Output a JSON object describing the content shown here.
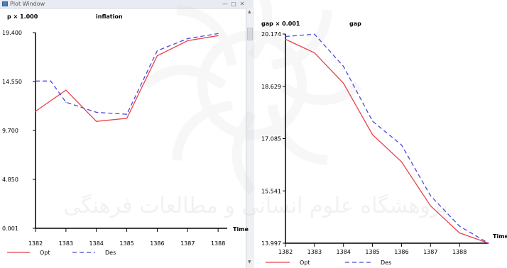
{
  "window": {
    "title": "Plot Window",
    "minimize_glyph": "—",
    "maximize_glyph": "▢",
    "close_glyph": "✕",
    "scroll_up_glyph": "▲",
    "scroll_down_glyph": "▼"
  },
  "watermark": {
    "text": "پژوهشگاه علوم انسانی و مطالعات فرهنگی",
    "color": "#cfcfcf"
  },
  "colors": {
    "opt": "#e8414b",
    "des": "#4a4ad8",
    "axis": "#000000"
  },
  "chart_data": [
    {
      "type": "line",
      "title": "inflation",
      "scale_label": "p × 1.000",
      "time_label": "Time",
      "y_tick_labels": [
        "19.400",
        "14.550",
        "9.700",
        "4.850",
        "0.001"
      ],
      "ylim": [
        0.001,
        19.4
      ],
      "x": [
        1382,
        1383,
        1384,
        1385,
        1386,
        1387,
        1388
      ],
      "x_tick_labels": [
        "1382",
        "1383",
        "1384",
        "1385",
        "1386",
        "1387",
        "1388"
      ],
      "xlim": [
        1382,
        1388.3
      ],
      "series": [
        {
          "name": "Opt",
          "style": "solid",
          "x": [
            1382,
            1383,
            1384,
            1385,
            1386,
            1387,
            1388
          ],
          "values": [
            11.6,
            13.7,
            10.6,
            10.9,
            17.1,
            18.6,
            19.1
          ]
        },
        {
          "name": "Des",
          "style": "dashed",
          "x": [
            1382,
            1382.5,
            1383,
            1384,
            1385,
            1386,
            1387,
            1388
          ],
          "values": [
            14.6,
            14.6,
            12.5,
            11.5,
            11.3,
            17.6,
            18.8,
            19.3
          ]
        }
      ]
    },
    {
      "type": "line",
      "title": "gap",
      "scale_label": "gap × 0.001",
      "time_label": "Time",
      "y_tick_labels": [
        "20.174",
        "18.629",
        "17.085",
        "15.541",
        "13.997"
      ],
      "ylim": [
        13.997,
        20.174
      ],
      "x": [
        1382,
        1383,
        1384,
        1385,
        1386,
        1387,
        1388,
        1389
      ],
      "x_tick_labels": [
        "1382",
        "1383",
        "1384",
        "1385",
        "1386",
        "1387",
        "1388"
      ],
      "xlim": [
        1382,
        1389
      ],
      "series": [
        {
          "name": "Opt",
          "style": "solid",
          "x": [
            1382,
            1383,
            1384,
            1385,
            1386,
            1387,
            1388,
            1389
          ],
          "values": [
            20.02,
            19.62,
            18.72,
            17.2,
            16.4,
            15.1,
            14.3,
            13.997
          ]
        },
        {
          "name": "Des",
          "style": "dashed",
          "x": [
            1382,
            1383,
            1384,
            1385,
            1386,
            1387,
            1388,
            1389
          ],
          "values": [
            20.1,
            20.17,
            19.22,
            17.6,
            16.9,
            15.4,
            14.5,
            13.997
          ]
        }
      ]
    }
  ]
}
